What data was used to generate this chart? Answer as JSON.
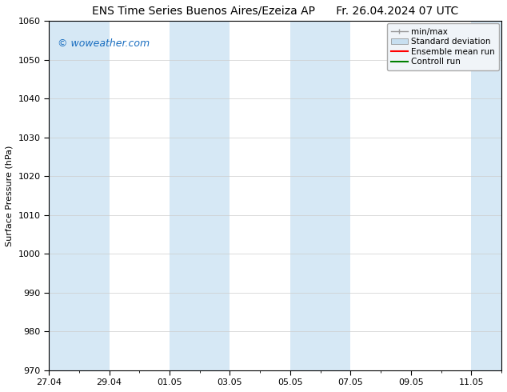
{
  "title_left": "ENS Time Series Buenos Aires/Ezeiza AP",
  "title_right": "Fr. 26.04.2024 07 UTC",
  "ylabel": "Surface Pressure (hPa)",
  "ylim": [
    970,
    1060
  ],
  "yticks": [
    970,
    980,
    990,
    1000,
    1010,
    1020,
    1030,
    1040,
    1050,
    1060
  ],
  "xlim": [
    0,
    15
  ],
  "xtick_labels": [
    "27.04",
    "29.04",
    "01.05",
    "03.05",
    "05.05",
    "07.05",
    "09.05",
    "11.05"
  ],
  "xtick_positions": [
    0,
    2,
    4,
    6,
    8,
    10,
    12,
    14
  ],
  "shaded_bands": [
    {
      "x_start": 0,
      "x_end": 2,
      "color": "#d6e8f5"
    },
    {
      "x_start": 4,
      "x_end": 6,
      "color": "#d6e8f5"
    },
    {
      "x_start": 8,
      "x_end": 10,
      "color": "#d6e8f5"
    },
    {
      "x_start": 14,
      "x_end": 15,
      "color": "#d6e8f5"
    }
  ],
  "watermark_text": "© woweather.com",
  "watermark_color": "#1a6ec0",
  "legend_items": [
    {
      "label": "min/max",
      "color": "#999999",
      "type": "minmax"
    },
    {
      "label": "Standard deviation",
      "color": "#c8dff0",
      "type": "fill"
    },
    {
      "label": "Ensemble mean run",
      "color": "red",
      "type": "line"
    },
    {
      "label": "Controll run",
      "color": "green",
      "type": "line"
    }
  ],
  "bg_color": "#ffffff",
  "plot_bg_color": "#ffffff",
  "font_size_title": 10,
  "font_size_axis": 8,
  "font_size_legend": 7.5,
  "font_size_watermark": 9,
  "grid_color": "#cccccc",
  "tick_color": "#000000",
  "axis_color": "#000000"
}
